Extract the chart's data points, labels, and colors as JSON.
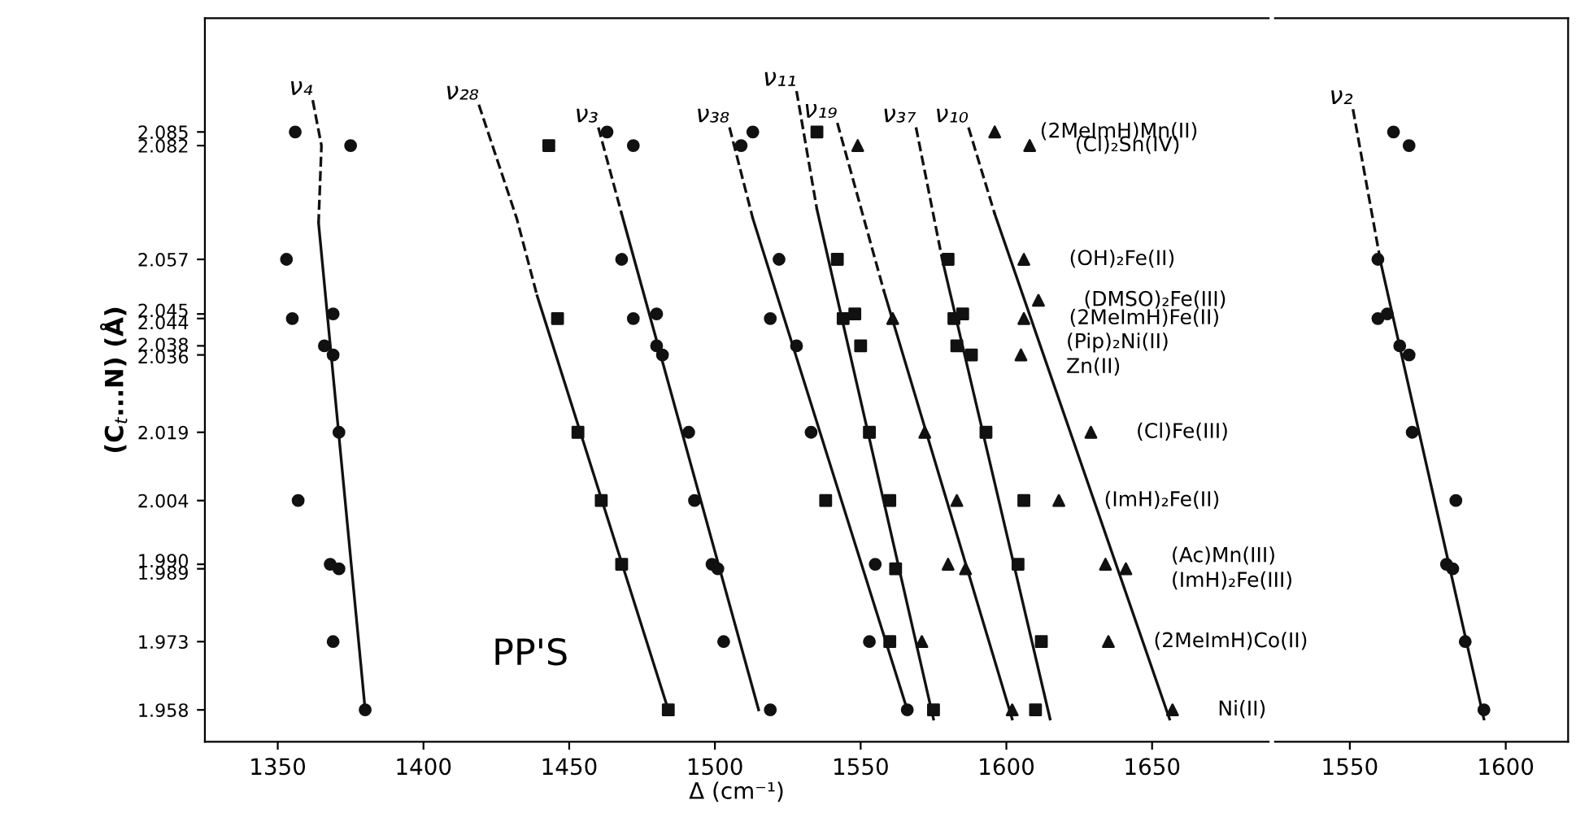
{
  "chart_data": [
    {
      "type": "scatter",
      "xlabel": "Δ (cm⁻¹)",
      "ylabel": "(C$_{t}$...N) (Å)",
      "xlim": [
        1325,
        1690
      ],
      "xticks": [
        1350,
        1400,
        1450,
        1500,
        1550,
        1600,
        1650
      ],
      "ylim": [
        1.951,
        2.11
      ],
      "yticks": [
        2.082,
        2.085,
        2.057,
        2.045,
        2.044,
        2.038,
        2.036,
        2.019,
        2.004,
        {
          "value": 1.99,
          "label": "1.990"
        },
        1.989,
        1.973,
        1.958
      ],
      "grid": false,
      "series": [
        {
          "type": "scatter",
          "marker": "circle",
          "color": "#111111",
          "x": [
            1375,
            1356,
            1353,
            1355,
            1369,
            1366,
            1369,
            1371,
            1357,
            1368,
            1371,
            1369,
            1380
          ],
          "values": [
            2.082,
            2.085,
            2.057,
            2.044,
            2.045,
            2.038,
            2.036,
            2.019,
            2.004,
            1.99,
            1.989,
            1.973,
            1.958
          ]
        },
        {
          "type": "line",
          "name": "ν₄",
          "line_style": "dashed",
          "color": "#111111",
          "x": [
            1362,
            1365,
            1364
          ],
          "values": [
            2.092,
            2.082,
            2.065
          ]
        },
        {
          "type": "line",
          "line_style": "solid",
          "color": "#111111",
          "x": [
            1364,
            1380
          ],
          "values": [
            2.065,
            1.958
          ]
        },
        {
          "type": "scatter",
          "marker": "square",
          "color": "#111111",
          "x": [
            1443,
            1446,
            1453,
            1461,
            1468,
            1484
          ],
          "values": [
            2.082,
            2.044,
            2.019,
            2.004,
            1.99,
            1.958
          ]
        },
        {
          "type": "line",
          "name": "ν₂₈",
          "line_style": "dashed",
          "color": "#111111",
          "x": [
            1419,
            1432,
            1439
          ],
          "values": [
            2.091,
            2.066,
            2.049
          ]
        },
        {
          "type": "line",
          "line_style": "solid",
          "color": "#111111",
          "x": [
            1439,
            1484
          ],
          "values": [
            2.049,
            1.958
          ]
        },
        {
          "type": "scatter",
          "marker": "circle",
          "color": "#111111",
          "x": [
            1472,
            1463,
            1468,
            1472,
            1480,
            1480,
            1482,
            1491,
            1493,
            1499,
            1501,
            1503,
            1519
          ],
          "values": [
            2.082,
            2.085,
            2.057,
            2.044,
            2.045,
            2.038,
            2.036,
            2.019,
            2.004,
            1.99,
            1.989,
            1.973,
            1.958
          ]
        },
        {
          "type": "line",
          "name": "ν₃",
          "line_style": "dashed",
          "color": "#111111",
          "x": [
            1460,
            1468
          ],
          "values": [
            2.086,
            2.067
          ]
        },
        {
          "type": "line",
          "line_style": "solid",
          "color": "#111111",
          "x": [
            1468,
            1515
          ],
          "values": [
            2.067,
            1.958
          ]
        },
        {
          "type": "scatter",
          "marker": "circle",
          "color": "#111111",
          "x": [
            1509,
            1513,
            1522,
            1519,
            1528,
            1533,
            1555,
            1553,
            1566
          ],
          "values": [
            2.082,
            2.085,
            2.057,
            2.044,
            2.038,
            2.019,
            1.99,
            1.973,
            1.958
          ]
        },
        {
          "type": "line",
          "name": "ν₃₈",
          "line_style": "dashed",
          "color": "#111111",
          "x": [
            1505,
            1513
          ],
          "values": [
            2.086,
            2.066
          ]
        },
        {
          "type": "line",
          "line_style": "solid",
          "color": "#111111",
          "x": [
            1513,
            1566
          ],
          "values": [
            2.066,
            1.958
          ]
        },
        {
          "type": "scatter",
          "marker": "square",
          "color": "#111111",
          "x": [
            1535,
            1542,
            1544,
            1548,
            1550,
            1553,
            1538,
            1560,
            1562,
            1560,
            1575
          ],
          "values": [
            2.085,
            2.057,
            2.044,
            2.045,
            2.038,
            2.019,
            2.004,
            2.004,
            1.989,
            1.973,
            1.958
          ]
        },
        {
          "type": "line",
          "name": "ν₁₁",
          "line_style": "dashed",
          "color": "#111111",
          "x": [
            1528,
            1535
          ],
          "values": [
            2.094,
            2.068
          ]
        },
        {
          "type": "line",
          "line_style": "solid",
          "color": "#111111",
          "x": [
            1535,
            1575
          ],
          "values": [
            2.068,
            1.956
          ]
        },
        {
          "type": "scatter",
          "marker": "triangle",
          "color": "#111111",
          "x": [
            1549,
            1561,
            1572,
            1583,
            1580,
            1586,
            1571,
            1602
          ],
          "values": [
            2.082,
            2.044,
            2.019,
            2.004,
            1.99,
            1.989,
            1.973,
            1.958
          ]
        },
        {
          "type": "line",
          "name": "ν₁₉",
          "line_style": "dashed",
          "color": "#111111",
          "x": [
            1542,
            1558
          ],
          "values": [
            2.087,
            2.05
          ]
        },
        {
          "type": "line",
          "line_style": "solid",
          "color": "#111111",
          "x": [
            1558,
            1602
          ],
          "values": [
            2.05,
            1.956
          ]
        },
        {
          "type": "scatter",
          "marker": "square",
          "color": "#111111",
          "x": [
            1580,
            1582,
            1585,
            1583,
            1588,
            1593,
            1606,
            1604,
            1612,
            1610
          ],
          "values": [
            2.057,
            2.044,
            2.045,
            2.038,
            2.036,
            2.019,
            2.004,
            1.99,
            1.973,
            1.958
          ]
        },
        {
          "type": "line",
          "name": "ν₃₇",
          "line_style": "dashed",
          "color": "#111111",
          "x": [
            1569,
            1578
          ],
          "values": [
            2.086,
            2.057
          ]
        },
        {
          "type": "line",
          "line_style": "solid",
          "color": "#111111",
          "x": [
            1578,
            1615
          ],
          "values": [
            2.057,
            1.956
          ]
        },
        {
          "type": "scatter",
          "marker": "triangle",
          "color": "#111111",
          "x": [
            1608,
            1596,
            1606,
            1606,
            1611,
            1605,
            1629,
            1618,
            1634,
            1641,
            1635,
            1657
          ],
          "values": [
            2.082,
            2.085,
            2.057,
            2.044,
            2.048,
            2.036,
            2.019,
            2.004,
            1.99,
            1.989,
            1.973,
            1.958
          ]
        },
        {
          "type": "line",
          "name": "ν₁₀",
          "line_style": "dashed",
          "color": "#111111",
          "x": [
            1587,
            1596
          ],
          "values": [
            2.086,
            2.067
          ]
        },
        {
          "type": "line",
          "line_style": "solid",
          "color": "#111111",
          "x": [
            1596,
            1656
          ],
          "values": [
            2.067,
            1.956
          ]
        }
      ],
      "annotations": [
        {
          "text": "(Cl)₂Sn(IV)",
          "x": 1608,
          "y": 2.082
        },
        {
          "text": "(2MeImH)Mn(II)",
          "x": 1596,
          "y": 2.085
        },
        {
          "text": "(OH)₂Fe(II)",
          "x": 1606,
          "y": 2.057
        },
        {
          "text": "(DMSO)₂Fe(III)",
          "x": 1611,
          "y": 2.048
        },
        {
          "text": "(2MeImH)Fe(II)",
          "x": 1606,
          "y": 2.044
        },
        {
          "text": "(Pip)₂Ni(II)",
          "x": 1605,
          "y": 2.036
        },
        {
          "text": "Zn(II)",
          "x": 1605,
          "y": 2.036
        },
        {
          "text": "(Cl)Fe(III)",
          "x": 1629,
          "y": 2.019
        },
        {
          "text": "(ImH)₂Fe(II)",
          "x": 1618,
          "y": 2.004
        },
        {
          "text": "(Ac)Mn(III)",
          "x": 1641,
          "y": 1.989
        },
        {
          "text": "(ImH)₂Fe(III)",
          "x": 1641,
          "y": 1.989
        },
        {
          "text": "(2MeImH)Co(II)",
          "x": 1635,
          "y": 1.973
        },
        {
          "text": "Ni(II)",
          "x": 1657,
          "y": 1.958
        },
        "PP'S"
      ]
    },
    {
      "type": "scatter",
      "xlim": [
        1526,
        1620
      ],
      "xticks": [
        1550,
        1600
      ],
      "ylim": [
        1.951,
        2.11
      ],
      "tick_labels": "x",
      "grid": false,
      "series": [
        {
          "type": "scatter",
          "marker": "circle",
          "color": "#111111",
          "x": [
            1569,
            1564,
            1559,
            1559,
            1562,
            1566,
            1569,
            1570,
            1584,
            1581,
            1583,
            1587,
            1593
          ],
          "values": [
            2.082,
            2.085,
            2.057,
            2.044,
            2.045,
            2.038,
            2.036,
            2.019,
            2.004,
            1.99,
            1.989,
            1.973,
            1.958
          ]
        },
        {
          "type": "line",
          "name": "ν₂",
          "line_style": "dashed",
          "color": "#111111",
          "x": [
            1551,
            1560
          ],
          "values": [
            2.09,
            2.056
          ]
        },
        {
          "type": "line",
          "line_style": "solid",
          "color": "#111111",
          "x": [
            1560,
            1593
          ],
          "values": [
            2.056,
            1.956
          ]
        }
      ]
    }
  ]
}
